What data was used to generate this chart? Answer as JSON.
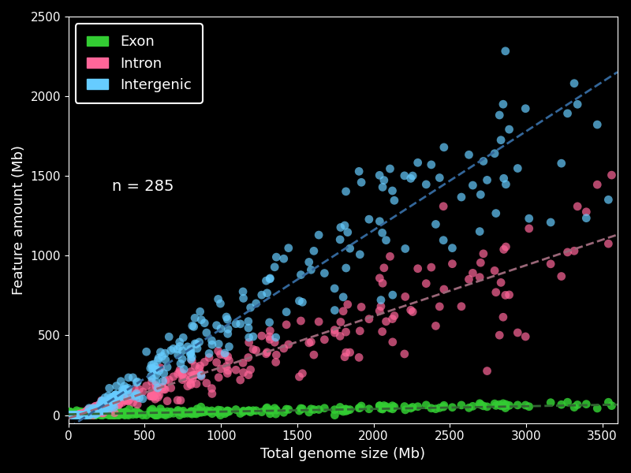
{
  "title": "",
  "xlabel": "Total genome size (Mb)",
  "ylabel": "Feature amount (Mb)",
  "n_label": "n = 285",
  "background_color": "#000000",
  "axis_color": "#ffffff",
  "legend_labels": [
    "Exon",
    "Intron",
    "Intergenic"
  ],
  "legend_colors": [
    "#33cc33",
    "#ff6699",
    "#66ccff"
  ],
  "trend_colors": [
    "#336633",
    "#996677",
    "#336699"
  ],
  "xlim": [
    0,
    3600
  ],
  "ylim": [
    -50,
    2500
  ],
  "n_points": 285,
  "exon_slope": 0.017,
  "exon_intercept": 5,
  "intron_slope": 0.32,
  "intron_intercept": -20,
  "intergenic_slope": 0.62,
  "intergenic_intercept": -80,
  "marker_size": 60,
  "alpha_exon": 0.85,
  "alpha_intron": 0.7,
  "alpha_intergenic": 0.7,
  "trend_lw": 2.0,
  "seed": 42
}
